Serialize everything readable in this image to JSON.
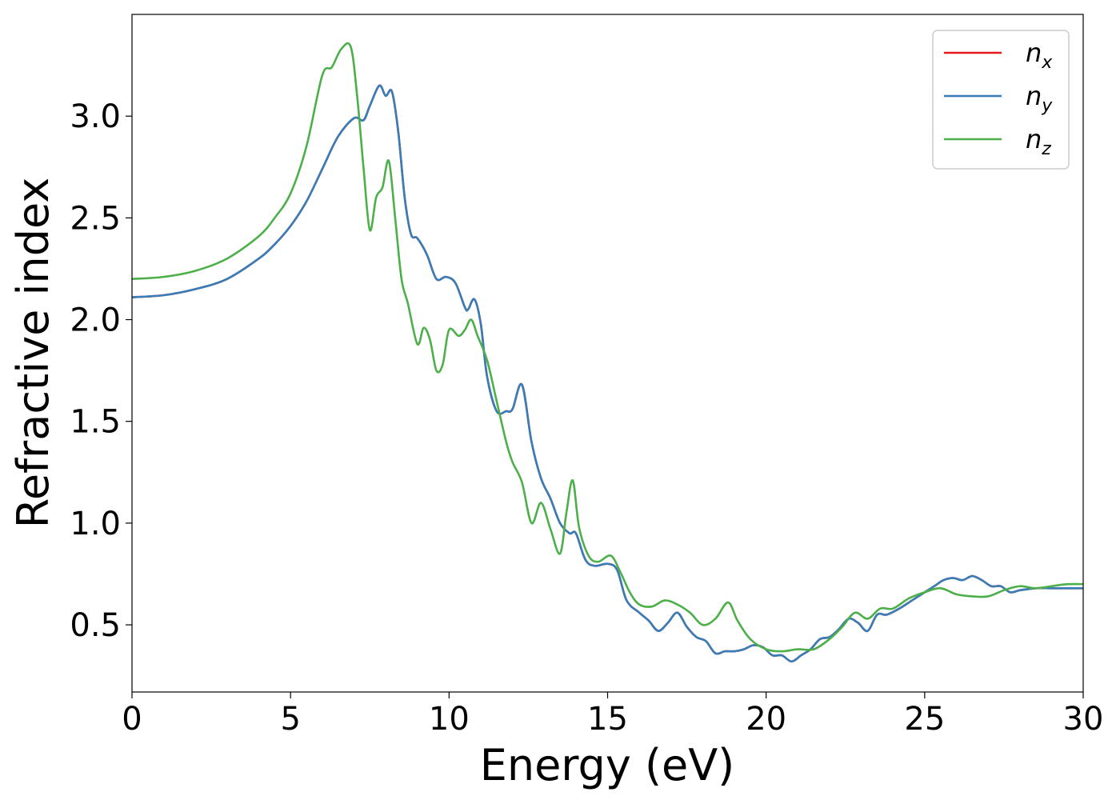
{
  "chart_data": {
    "type": "line",
    "xlabel": "Energy (eV)",
    "ylabel": "Refractive index",
    "xlim": [
      0,
      30
    ],
    "ylim": [
      0.17,
      3.5
    ],
    "xticks": [
      "0",
      "5",
      "10",
      "15",
      "20",
      "25",
      "30"
    ],
    "yticks": [
      "0.5",
      "1.0",
      "1.5",
      "2.0",
      "2.5",
      "3.0"
    ],
    "grid": false,
    "legend_position": "top-right",
    "series": [
      {
        "name": "n",
        "subscript": "x",
        "color": "#e41a1c",
        "x": [
          0,
          1,
          2,
          3,
          4,
          4.5,
          5,
          5.5,
          6,
          6.5,
          7,
          7.3,
          7.5,
          7.8,
          8,
          8.2,
          8.4,
          8.6,
          8.8,
          9,
          9.3,
          9.6,
          9.9,
          10.2,
          10.5,
          10.6,
          10.8,
          11.0,
          11.2,
          11.5,
          11.8,
          12.0,
          12.3,
          12.6,
          12.9,
          13.2,
          13.5,
          13.8,
          14.0,
          14.3,
          14.6,
          15,
          15.3,
          15.6,
          16,
          16.3,
          16.6,
          16.9,
          17.2,
          17.5,
          17.8,
          18.1,
          18.4,
          18.7,
          19,
          19.3,
          19.6,
          19.9,
          20.2,
          20.5,
          20.8,
          21.1,
          21.4,
          21.7,
          22,
          22.3,
          22.6,
          22.9,
          23.2,
          23.5,
          23.8,
          24.2,
          24.6,
          25,
          25.3,
          25.6,
          25.9,
          26.2,
          26.5,
          26.8,
          27.1,
          27.4,
          27.7,
          28,
          28.5,
          29,
          29.5,
          30
        ],
        "y": [
          2.11,
          2.12,
          2.15,
          2.2,
          2.3,
          2.37,
          2.46,
          2.58,
          2.74,
          2.9,
          2.99,
          2.98,
          3.05,
          3.15,
          3.1,
          3.12,
          2.92,
          2.6,
          2.42,
          2.4,
          2.32,
          2.2,
          2.21,
          2.18,
          2.06,
          2.05,
          2.1,
          1.98,
          1.72,
          1.55,
          1.55,
          1.56,
          1.68,
          1.4,
          1.22,
          1.12,
          1.0,
          0.95,
          0.95,
          0.82,
          0.79,
          0.8,
          0.77,
          0.62,
          0.56,
          0.52,
          0.47,
          0.51,
          0.56,
          0.49,
          0.44,
          0.42,
          0.36,
          0.37,
          0.37,
          0.38,
          0.4,
          0.39,
          0.35,
          0.35,
          0.32,
          0.35,
          0.38,
          0.43,
          0.44,
          0.48,
          0.53,
          0.51,
          0.47,
          0.55,
          0.55,
          0.58,
          0.62,
          0.66,
          0.69,
          0.72,
          0.73,
          0.72,
          0.74,
          0.72,
          0.69,
          0.69,
          0.66,
          0.67,
          0.68,
          0.68,
          0.68,
          0.68
        ]
      },
      {
        "name": "n",
        "subscript": "y",
        "color": "#377eb8",
        "x": [
          0,
          1,
          2,
          3,
          4,
          4.5,
          5,
          5.5,
          6,
          6.5,
          7,
          7.3,
          7.5,
          7.8,
          8,
          8.2,
          8.4,
          8.6,
          8.8,
          9,
          9.3,
          9.6,
          9.9,
          10.2,
          10.5,
          10.6,
          10.8,
          11.0,
          11.2,
          11.5,
          11.8,
          12.0,
          12.3,
          12.6,
          12.9,
          13.2,
          13.5,
          13.8,
          14.0,
          14.3,
          14.6,
          15,
          15.3,
          15.6,
          16,
          16.3,
          16.6,
          16.9,
          17.2,
          17.5,
          17.8,
          18.1,
          18.4,
          18.7,
          19,
          19.3,
          19.6,
          19.9,
          20.2,
          20.5,
          20.8,
          21.1,
          21.4,
          21.7,
          22,
          22.3,
          22.6,
          22.9,
          23.2,
          23.5,
          23.8,
          24.2,
          24.6,
          25,
          25.3,
          25.6,
          25.9,
          26.2,
          26.5,
          26.8,
          27.1,
          27.4,
          27.7,
          28,
          28.5,
          29,
          29.5,
          30
        ],
        "y": [
          2.11,
          2.12,
          2.15,
          2.2,
          2.3,
          2.37,
          2.46,
          2.58,
          2.74,
          2.9,
          2.99,
          2.98,
          3.05,
          3.15,
          3.1,
          3.12,
          2.92,
          2.6,
          2.42,
          2.4,
          2.32,
          2.2,
          2.21,
          2.18,
          2.06,
          2.05,
          2.1,
          1.98,
          1.72,
          1.55,
          1.55,
          1.56,
          1.68,
          1.4,
          1.22,
          1.12,
          1.0,
          0.95,
          0.95,
          0.82,
          0.79,
          0.8,
          0.77,
          0.62,
          0.56,
          0.52,
          0.47,
          0.51,
          0.56,
          0.49,
          0.44,
          0.42,
          0.36,
          0.37,
          0.37,
          0.38,
          0.4,
          0.39,
          0.35,
          0.35,
          0.32,
          0.35,
          0.38,
          0.43,
          0.44,
          0.48,
          0.53,
          0.51,
          0.47,
          0.55,
          0.55,
          0.58,
          0.62,
          0.66,
          0.69,
          0.72,
          0.73,
          0.72,
          0.74,
          0.72,
          0.69,
          0.69,
          0.66,
          0.67,
          0.68,
          0.68,
          0.68,
          0.68
        ]
      },
      {
        "name": "n",
        "subscript": "z",
        "color": "#4daf4a",
        "x": [
          0,
          1,
          2,
          3,
          4,
          4.5,
          5,
          5.5,
          6,
          6.3,
          6.6,
          6.9,
          7.1,
          7.3,
          7.5,
          7.7,
          7.9,
          8.1,
          8.3,
          8.5,
          8.7,
          9,
          9.2,
          9.4,
          9.6,
          9.8,
          10.0,
          10.3,
          10.5,
          10.7,
          10.9,
          11.2,
          11.5,
          11.8,
          12.0,
          12.3,
          12.6,
          12.9,
          13.2,
          13.5,
          13.7,
          13.9,
          14.1,
          14.4,
          14.7,
          15.1,
          15.4,
          15.7,
          16,
          16.4,
          16.8,
          17.2,
          17.6,
          18.0,
          18.4,
          18.8,
          19.1,
          19.5,
          20,
          20.5,
          21,
          21.5,
          22,
          22.4,
          22.8,
          23.2,
          23.6,
          24.0,
          24.5,
          25,
          25.5,
          26,
          26.5,
          27,
          27.5,
          28,
          28.5,
          29,
          29.5,
          30
        ],
        "y": [
          2.2,
          2.21,
          2.24,
          2.3,
          2.41,
          2.5,
          2.62,
          2.85,
          3.2,
          3.24,
          3.33,
          3.34,
          3.1,
          2.75,
          2.44,
          2.6,
          2.65,
          2.78,
          2.5,
          2.2,
          2.08,
          1.88,
          1.96,
          1.9,
          1.75,
          1.78,
          1.95,
          1.92,
          1.95,
          2.0,
          1.92,
          1.8,
          1.6,
          1.4,
          1.3,
          1.2,
          1.0,
          1.1,
          0.97,
          0.85,
          1.05,
          1.21,
          0.98,
          0.84,
          0.81,
          0.84,
          0.76,
          0.66,
          0.6,
          0.59,
          0.62,
          0.6,
          0.56,
          0.5,
          0.53,
          0.61,
          0.52,
          0.43,
          0.38,
          0.37,
          0.38,
          0.38,
          0.43,
          0.49,
          0.56,
          0.53,
          0.58,
          0.58,
          0.63,
          0.66,
          0.68,
          0.65,
          0.64,
          0.64,
          0.67,
          0.69,
          0.68,
          0.69,
          0.7,
          0.7
        ]
      }
    ]
  }
}
